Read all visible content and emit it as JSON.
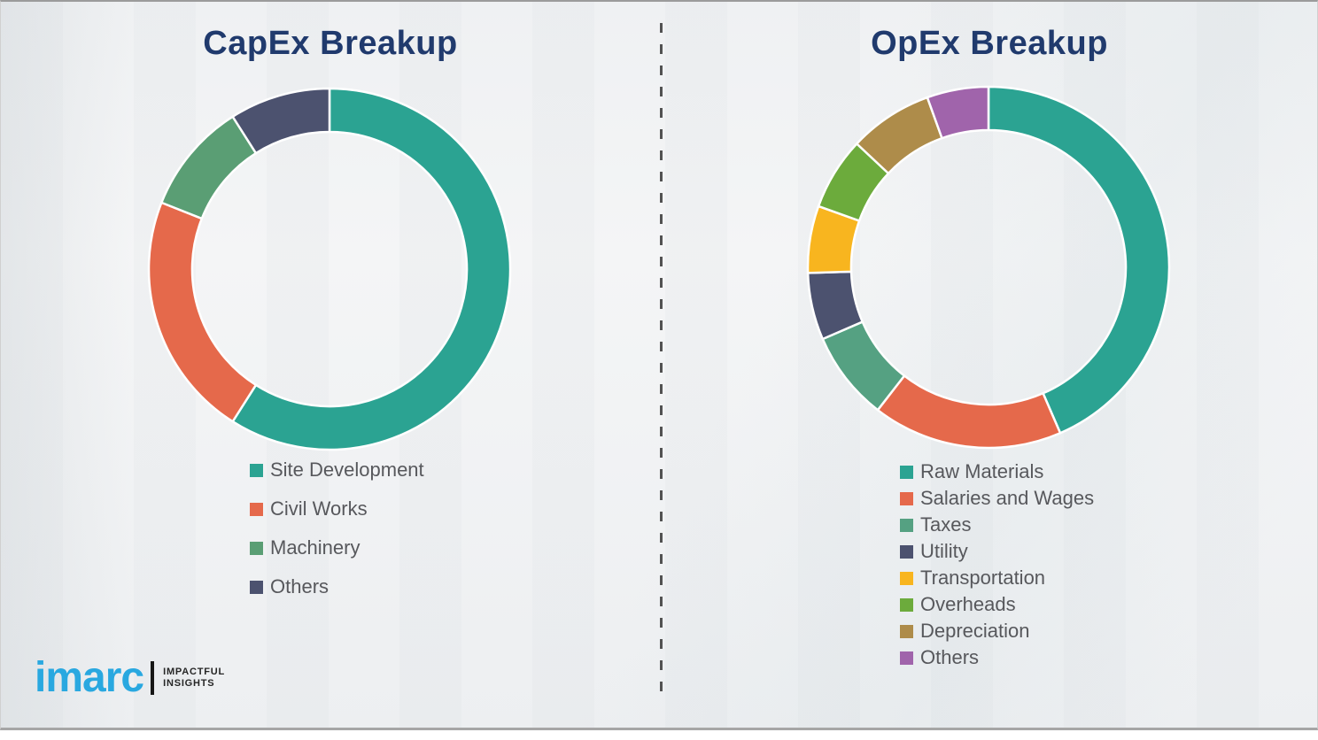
{
  "logo": {
    "brand": "imarc",
    "brand_color": "#29a8e0",
    "tagline_line1": "IMPACTFUL",
    "tagline_line2": "INSIGHTS"
  },
  "chart_data": [
    {
      "type": "pie",
      "subtype": "donut",
      "title": "CapEx Breakup",
      "categories": [
        "Site Development",
        "Civil Works",
        "Machinery",
        "Others"
      ],
      "values": [
        59,
        22,
        10,
        9
      ],
      "unit": "percent",
      "colors": [
        "#2ba392",
        "#e5694b",
        "#5a9e74",
        "#4c526f"
      ],
      "start_angle_deg": 0,
      "direction": "clockwise",
      "donut_hole_ratio": 0.76,
      "legend_position": "bottom-left"
    },
    {
      "type": "pie",
      "subtype": "donut",
      "title": "OpEx Breakup",
      "categories": [
        "Raw Materials",
        "Salaries and Wages",
        "Taxes",
        "Utility",
        "Transportation",
        "Overheads",
        "Depreciation",
        "Others"
      ],
      "values": [
        43.5,
        17,
        8,
        6,
        6,
        6.5,
        7.5,
        5.5
      ],
      "unit": "percent",
      "colors": [
        "#2ba392",
        "#e5694b",
        "#55a182",
        "#4c526f",
        "#f8b51f",
        "#6cab3c",
        "#ae8c4a",
        "#a064ab"
      ],
      "start_angle_deg": 0,
      "direction": "clockwise",
      "donut_hole_ratio": 0.76,
      "legend_position": "bottom-left"
    }
  ]
}
